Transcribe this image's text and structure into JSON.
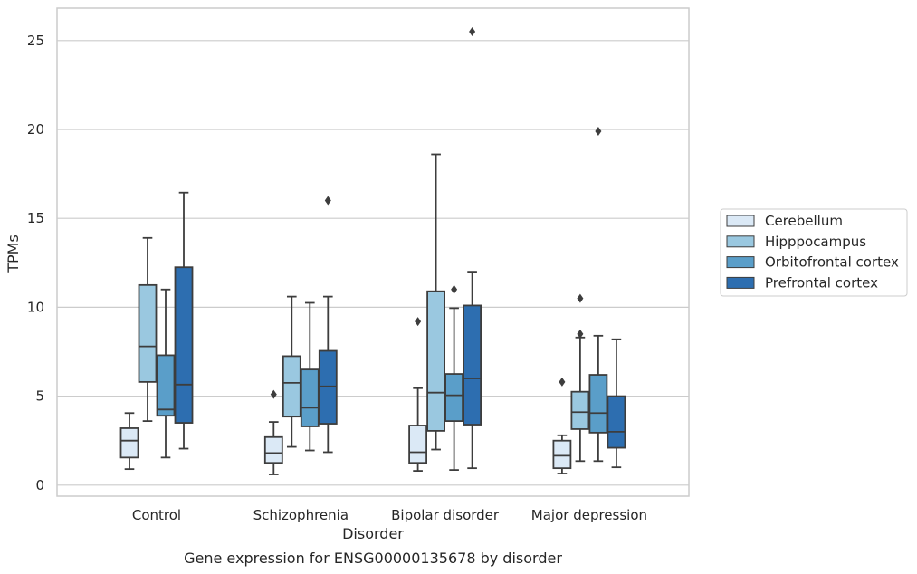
{
  "chart_data": {
    "type": "box",
    "caption": "Gene expression for ENSG00000135678 by disorder",
    "xlabel": "Disorder",
    "ylabel": "TPMs",
    "ylim": [
      -0.6,
      26.5
    ],
    "yticks": [
      0,
      5,
      10,
      15,
      20,
      25
    ],
    "grid": "horizontal",
    "legend_position": "right",
    "categories": [
      "Control",
      "Schizophrenia",
      "Bipolar disorder",
      "Major depression"
    ],
    "series": [
      {
        "name": "Cerebellum",
        "color": "#dbe9f6",
        "boxes": [
          {
            "whislo": 0.9,
            "q1": 1.55,
            "med": 2.5,
            "q3": 3.2,
            "whishi": 4.05,
            "fliers": []
          },
          {
            "whislo": 0.6,
            "q1": 1.25,
            "med": 1.8,
            "q3": 2.7,
            "whishi": 3.55,
            "fliers": [
              5.1
            ]
          },
          {
            "whislo": 0.8,
            "q1": 1.25,
            "med": 1.85,
            "q3": 3.35,
            "whishi": 5.45,
            "fliers": [
              9.2
            ]
          },
          {
            "whislo": 0.65,
            "q1": 0.95,
            "med": 1.65,
            "q3": 2.5,
            "whishi": 2.8,
            "fliers": [
              5.8
            ]
          }
        ]
      },
      {
        "name": "Hipppocampus",
        "color": "#9ac8e0",
        "boxes": [
          {
            "whislo": 3.6,
            "q1": 5.8,
            "med": 7.8,
            "q3": 11.25,
            "whishi": 13.9,
            "fliers": []
          },
          {
            "whislo": 2.15,
            "q1": 3.85,
            "med": 5.75,
            "q3": 7.25,
            "whishi": 10.6,
            "fliers": []
          },
          {
            "whislo": 2.0,
            "q1": 3.05,
            "med": 5.2,
            "q3": 10.9,
            "whishi": 18.6,
            "fliers": []
          },
          {
            "whislo": 1.35,
            "q1": 3.15,
            "med": 4.1,
            "q3": 5.25,
            "whishi": 8.3,
            "fliers": [
              8.5,
              10.5
            ]
          }
        ]
      },
      {
        "name": "Orbitofrontal cortex",
        "color": "#5a9ec9",
        "boxes": [
          {
            "whislo": 1.55,
            "q1": 3.9,
            "med": 4.25,
            "q3": 7.3,
            "whishi": 11.0,
            "fliers": []
          },
          {
            "whislo": 1.95,
            "q1": 3.3,
            "med": 4.35,
            "q3": 6.5,
            "whishi": 10.25,
            "fliers": []
          },
          {
            "whislo": 0.85,
            "q1": 3.6,
            "med": 5.05,
            "q3": 6.25,
            "whishi": 9.95,
            "fliers": [
              11.0
            ]
          },
          {
            "whislo": 1.35,
            "q1": 2.95,
            "med": 4.05,
            "q3": 6.2,
            "whishi": 8.4,
            "fliers": [
              19.9
            ]
          }
        ]
      },
      {
        "name": "Prefrontal cortex",
        "color": "#2d6eb0",
        "boxes": [
          {
            "whislo": 2.05,
            "q1": 3.5,
            "med": 5.65,
            "q3": 12.25,
            "whishi": 16.45,
            "fliers": []
          },
          {
            "whislo": 1.85,
            "q1": 3.45,
            "med": 5.55,
            "q3": 7.55,
            "whishi": 10.6,
            "fliers": [
              16.0
            ]
          },
          {
            "whislo": 0.95,
            "q1": 3.4,
            "med": 6.0,
            "q3": 10.1,
            "whishi": 12.0,
            "fliers": [
              25.5
            ]
          },
          {
            "whislo": 1.0,
            "q1": 2.1,
            "med": 3.0,
            "q3": 5.0,
            "whishi": 8.2,
            "fliers": []
          }
        ]
      }
    ]
  }
}
